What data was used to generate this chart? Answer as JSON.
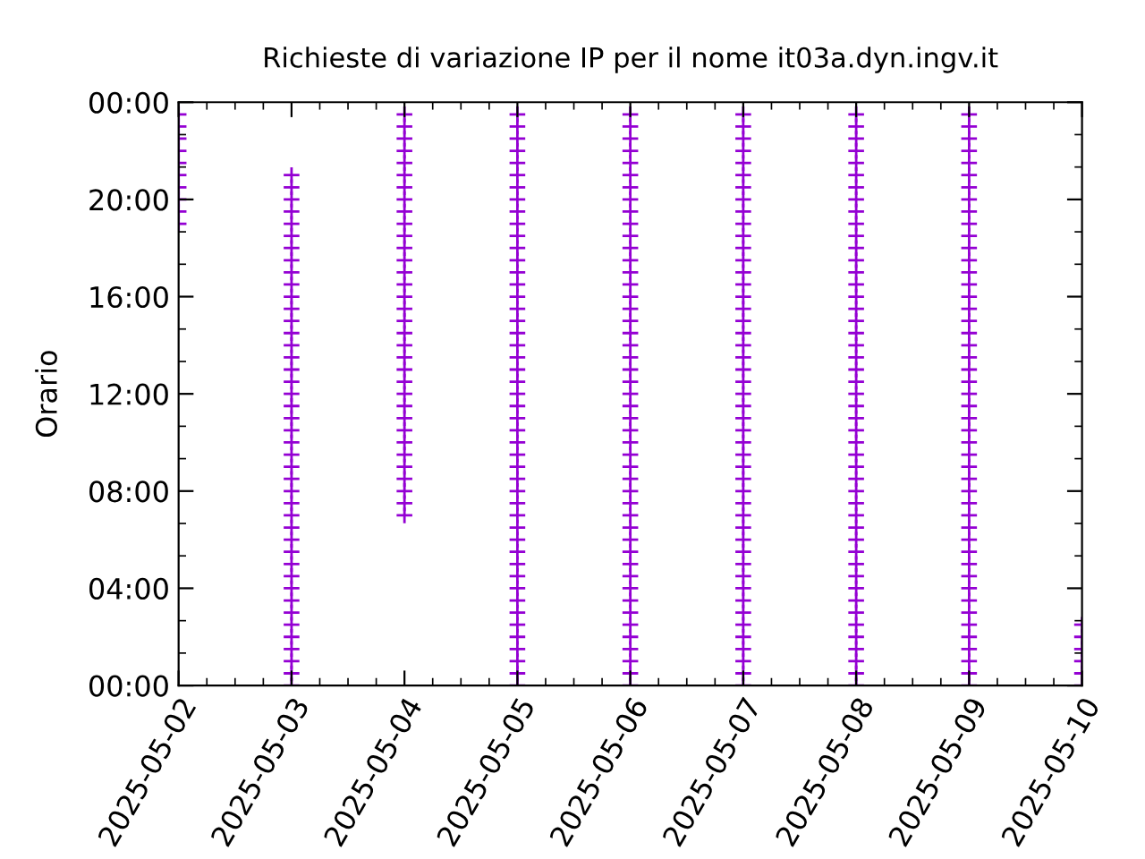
{
  "chart_data": {
    "type": "scatter",
    "title": "Richieste di variazione IP per il nome it03a.dyn.ingv.it",
    "ylabel": "Orario",
    "marker": "cross",
    "legend": false,
    "grid": false,
    "xlim": [
      "2025-05-02",
      "2025-05-10"
    ],
    "xticks": [
      "2025-05-02",
      "2025-05-03",
      "2025-05-04",
      "2025-05-05",
      "2025-05-06",
      "2025-05-07",
      "2025-05-08",
      "2025-05-09",
      "2025-05-10"
    ],
    "ylim": [
      0,
      24
    ],
    "yticks": [
      {
        "value": 0,
        "label": "00:00"
      },
      {
        "value": 4,
        "label": "04:00"
      },
      {
        "value": 8,
        "label": "08:00"
      },
      {
        "value": 12,
        "label": "12:00"
      },
      {
        "value": 16,
        "label": "16:00"
      },
      {
        "value": 20,
        "label": "20:00"
      },
      {
        "value": 24,
        "label": "00:00"
      }
    ],
    "series": [
      {
        "color": "#9400d3",
        "x": [
          "2025-05-02",
          "2025-05-02",
          "2025-05-02",
          "2025-05-02",
          "2025-05-02",
          "2025-05-02",
          "2025-05-02",
          "2025-05-02",
          "2025-05-02",
          "2025-05-02"
        ],
        "values": [
          19,
          19.5,
          20,
          20.5,
          21,
          21.5,
          22,
          22.5,
          23,
          23.5
        ]
      },
      {
        "color": "#9400d3",
        "x": [
          "2025-05-03",
          "2025-05-03",
          "2025-05-03",
          "2025-05-03",
          "2025-05-03",
          "2025-05-03",
          "2025-05-03",
          "2025-05-03",
          "2025-05-03",
          "2025-05-03",
          "2025-05-03",
          "2025-05-03",
          "2025-05-03",
          "2025-05-03",
          "2025-05-03",
          "2025-05-03",
          "2025-05-03",
          "2025-05-03",
          "2025-05-03",
          "2025-05-03",
          "2025-05-03",
          "2025-05-03",
          "2025-05-03",
          "2025-05-03",
          "2025-05-03",
          "2025-05-03",
          "2025-05-03",
          "2025-05-03",
          "2025-05-03",
          "2025-05-03",
          "2025-05-03",
          "2025-05-03",
          "2025-05-03",
          "2025-05-03",
          "2025-05-03",
          "2025-05-03",
          "2025-05-03",
          "2025-05-03",
          "2025-05-03",
          "2025-05-03",
          "2025-05-03",
          "2025-05-03",
          "2025-05-03"
        ],
        "values": [
          0,
          0.5,
          1,
          1.5,
          2,
          2.5,
          3,
          3.5,
          4,
          4.5,
          5,
          5.5,
          6,
          6.5,
          7,
          7.5,
          8,
          8.5,
          9,
          9.5,
          10,
          10.5,
          11,
          11.5,
          12,
          12.5,
          13,
          13.5,
          14,
          14.5,
          15,
          15.5,
          16,
          16.5,
          17,
          17.5,
          18,
          18.5,
          19,
          19.5,
          20,
          20.5,
          21
        ]
      },
      {
        "color": "#9400d3",
        "x": [
          "2025-05-04",
          "2025-05-04",
          "2025-05-04",
          "2025-05-04",
          "2025-05-04",
          "2025-05-04",
          "2025-05-04",
          "2025-05-04",
          "2025-05-04",
          "2025-05-04",
          "2025-05-04",
          "2025-05-04",
          "2025-05-04",
          "2025-05-04",
          "2025-05-04",
          "2025-05-04",
          "2025-05-04",
          "2025-05-04",
          "2025-05-04",
          "2025-05-04",
          "2025-05-04",
          "2025-05-04",
          "2025-05-04",
          "2025-05-04",
          "2025-05-04",
          "2025-05-04",
          "2025-05-04",
          "2025-05-04",
          "2025-05-04",
          "2025-05-04",
          "2025-05-04",
          "2025-05-04",
          "2025-05-04",
          "2025-05-04"
        ],
        "values": [
          7,
          7.5,
          8,
          8.5,
          9,
          9.5,
          10,
          10.5,
          11,
          11.5,
          12,
          12.5,
          13,
          13.5,
          14,
          14.5,
          15,
          15.5,
          16,
          16.5,
          17,
          17.5,
          18,
          18.5,
          19,
          19.5,
          20,
          20.5,
          21,
          21.5,
          22,
          22.5,
          23,
          23.5
        ]
      },
      {
        "color": "#9400d3",
        "x": [
          "2025-05-05",
          "2025-05-05",
          "2025-05-05",
          "2025-05-05",
          "2025-05-05",
          "2025-05-05",
          "2025-05-05",
          "2025-05-05",
          "2025-05-05",
          "2025-05-05",
          "2025-05-05",
          "2025-05-05",
          "2025-05-05",
          "2025-05-05",
          "2025-05-05",
          "2025-05-05",
          "2025-05-05",
          "2025-05-05",
          "2025-05-05",
          "2025-05-05",
          "2025-05-05",
          "2025-05-05",
          "2025-05-05",
          "2025-05-05",
          "2025-05-05",
          "2025-05-05",
          "2025-05-05",
          "2025-05-05",
          "2025-05-05",
          "2025-05-05",
          "2025-05-05",
          "2025-05-05",
          "2025-05-05",
          "2025-05-05",
          "2025-05-05",
          "2025-05-05",
          "2025-05-05",
          "2025-05-05",
          "2025-05-05",
          "2025-05-05",
          "2025-05-05",
          "2025-05-05",
          "2025-05-05",
          "2025-05-05",
          "2025-05-05",
          "2025-05-05",
          "2025-05-05",
          "2025-05-05"
        ],
        "values": [
          0,
          0.5,
          1,
          1.5,
          2,
          2.5,
          3,
          3.5,
          4,
          4.5,
          5,
          5.5,
          6,
          6.5,
          7,
          7.5,
          8,
          8.5,
          9,
          9.5,
          10,
          10.5,
          11,
          11.5,
          12,
          12.5,
          13,
          13.5,
          14,
          14.5,
          15,
          15.5,
          16,
          16.5,
          17,
          17.5,
          18,
          18.5,
          19,
          19.5,
          20,
          20.5,
          21,
          21.5,
          22,
          22.5,
          23,
          23.5
        ]
      },
      {
        "color": "#9400d3",
        "x": [
          "2025-05-06",
          "2025-05-06",
          "2025-05-06",
          "2025-05-06",
          "2025-05-06",
          "2025-05-06",
          "2025-05-06",
          "2025-05-06",
          "2025-05-06",
          "2025-05-06",
          "2025-05-06",
          "2025-05-06",
          "2025-05-06",
          "2025-05-06",
          "2025-05-06",
          "2025-05-06",
          "2025-05-06",
          "2025-05-06",
          "2025-05-06",
          "2025-05-06",
          "2025-05-06",
          "2025-05-06",
          "2025-05-06",
          "2025-05-06",
          "2025-05-06",
          "2025-05-06",
          "2025-05-06",
          "2025-05-06",
          "2025-05-06",
          "2025-05-06",
          "2025-05-06",
          "2025-05-06",
          "2025-05-06",
          "2025-05-06",
          "2025-05-06",
          "2025-05-06",
          "2025-05-06",
          "2025-05-06",
          "2025-05-06",
          "2025-05-06",
          "2025-05-06",
          "2025-05-06",
          "2025-05-06",
          "2025-05-06",
          "2025-05-06",
          "2025-05-06",
          "2025-05-06",
          "2025-05-06"
        ],
        "values": [
          0,
          0.5,
          1,
          1.5,
          2,
          2.5,
          3,
          3.5,
          4,
          4.5,
          5,
          5.5,
          6,
          6.5,
          7,
          7.5,
          8,
          8.5,
          9,
          9.5,
          10,
          10.5,
          11,
          11.5,
          12,
          12.5,
          13,
          13.5,
          14,
          14.5,
          15,
          15.5,
          16,
          16.5,
          17,
          17.5,
          18,
          18.5,
          19,
          19.5,
          20,
          20.5,
          21,
          21.5,
          22,
          22.5,
          23,
          23.5
        ]
      },
      {
        "color": "#9400d3",
        "x": [
          "2025-05-07",
          "2025-05-07",
          "2025-05-07",
          "2025-05-07",
          "2025-05-07",
          "2025-05-07",
          "2025-05-07",
          "2025-05-07",
          "2025-05-07",
          "2025-05-07",
          "2025-05-07",
          "2025-05-07",
          "2025-05-07",
          "2025-05-07",
          "2025-05-07",
          "2025-05-07",
          "2025-05-07",
          "2025-05-07",
          "2025-05-07",
          "2025-05-07",
          "2025-05-07",
          "2025-05-07",
          "2025-05-07",
          "2025-05-07",
          "2025-05-07",
          "2025-05-07",
          "2025-05-07",
          "2025-05-07",
          "2025-05-07",
          "2025-05-07",
          "2025-05-07",
          "2025-05-07",
          "2025-05-07",
          "2025-05-07",
          "2025-05-07",
          "2025-05-07",
          "2025-05-07",
          "2025-05-07",
          "2025-05-07",
          "2025-05-07",
          "2025-05-07",
          "2025-05-07",
          "2025-05-07",
          "2025-05-07",
          "2025-05-07",
          "2025-05-07",
          "2025-05-07",
          "2025-05-07"
        ],
        "values": [
          0,
          0.5,
          1,
          1.5,
          2,
          2.5,
          3,
          3.5,
          4,
          4.5,
          5,
          5.5,
          6,
          6.5,
          7,
          7.5,
          8,
          8.5,
          9,
          9.5,
          10,
          10.5,
          11,
          11.5,
          12,
          12.5,
          13,
          13.5,
          14,
          14.5,
          15,
          15.5,
          16,
          16.5,
          17,
          17.5,
          18,
          18.5,
          19,
          19.5,
          20,
          20.5,
          21,
          21.5,
          22,
          22.5,
          23,
          23.5
        ]
      },
      {
        "color": "#9400d3",
        "x": [
          "2025-05-08",
          "2025-05-08",
          "2025-05-08",
          "2025-05-08",
          "2025-05-08",
          "2025-05-08",
          "2025-05-08",
          "2025-05-08",
          "2025-05-08",
          "2025-05-08",
          "2025-05-08",
          "2025-05-08",
          "2025-05-08",
          "2025-05-08",
          "2025-05-08",
          "2025-05-08",
          "2025-05-08",
          "2025-05-08",
          "2025-05-08",
          "2025-05-08",
          "2025-05-08",
          "2025-05-08",
          "2025-05-08",
          "2025-05-08",
          "2025-05-08",
          "2025-05-08",
          "2025-05-08",
          "2025-05-08",
          "2025-05-08",
          "2025-05-08",
          "2025-05-08",
          "2025-05-08",
          "2025-05-08",
          "2025-05-08",
          "2025-05-08",
          "2025-05-08",
          "2025-05-08",
          "2025-05-08",
          "2025-05-08",
          "2025-05-08",
          "2025-05-08",
          "2025-05-08",
          "2025-05-08",
          "2025-05-08",
          "2025-05-08",
          "2025-05-08",
          "2025-05-08",
          "2025-05-08"
        ],
        "values": [
          0,
          0.5,
          1,
          1.5,
          2,
          2.5,
          3,
          3.5,
          4,
          4.5,
          5,
          5.5,
          6,
          6.5,
          7,
          7.5,
          8,
          8.5,
          9,
          9.5,
          10,
          10.5,
          11,
          11.5,
          12,
          12.5,
          13,
          13.5,
          14,
          14.5,
          15,
          15.5,
          16,
          16.5,
          17,
          17.5,
          18,
          18.5,
          19,
          19.5,
          20,
          20.5,
          21,
          21.5,
          22,
          22.5,
          23,
          23.5
        ]
      },
      {
        "color": "#9400d3",
        "x": [
          "2025-05-09",
          "2025-05-09",
          "2025-05-09",
          "2025-05-09",
          "2025-05-09",
          "2025-05-09",
          "2025-05-09",
          "2025-05-09",
          "2025-05-09",
          "2025-05-09",
          "2025-05-09",
          "2025-05-09",
          "2025-05-09",
          "2025-05-09",
          "2025-05-09",
          "2025-05-09",
          "2025-05-09",
          "2025-05-09",
          "2025-05-09",
          "2025-05-09",
          "2025-05-09",
          "2025-05-09",
          "2025-05-09",
          "2025-05-09",
          "2025-05-09",
          "2025-05-09",
          "2025-05-09",
          "2025-05-09",
          "2025-05-09",
          "2025-05-09",
          "2025-05-09",
          "2025-05-09",
          "2025-05-09",
          "2025-05-09",
          "2025-05-09",
          "2025-05-09",
          "2025-05-09",
          "2025-05-09",
          "2025-05-09",
          "2025-05-09",
          "2025-05-09",
          "2025-05-09",
          "2025-05-09",
          "2025-05-09",
          "2025-05-09",
          "2025-05-09",
          "2025-05-09",
          "2025-05-09"
        ],
        "values": [
          0,
          0.5,
          1,
          1.5,
          2,
          2.5,
          3,
          3.5,
          4,
          4.5,
          5,
          5.5,
          6,
          6.5,
          7,
          7.5,
          8,
          8.5,
          9,
          9.5,
          10,
          10.5,
          11,
          11.5,
          12,
          12.5,
          13,
          13.5,
          14,
          14.5,
          15,
          15.5,
          16,
          16.5,
          17,
          17.5,
          18,
          18.5,
          19,
          19.5,
          20,
          20.5,
          21,
          21.5,
          22,
          22.5,
          23,
          23.5
        ]
      },
      {
        "color": "#9400d3",
        "x": [
          "2025-05-10",
          "2025-05-10",
          "2025-05-10",
          "2025-05-10",
          "2025-05-10",
          "2025-05-10"
        ],
        "values": [
          0,
          0.5,
          1,
          1.5,
          2,
          2.5
        ]
      }
    ]
  }
}
